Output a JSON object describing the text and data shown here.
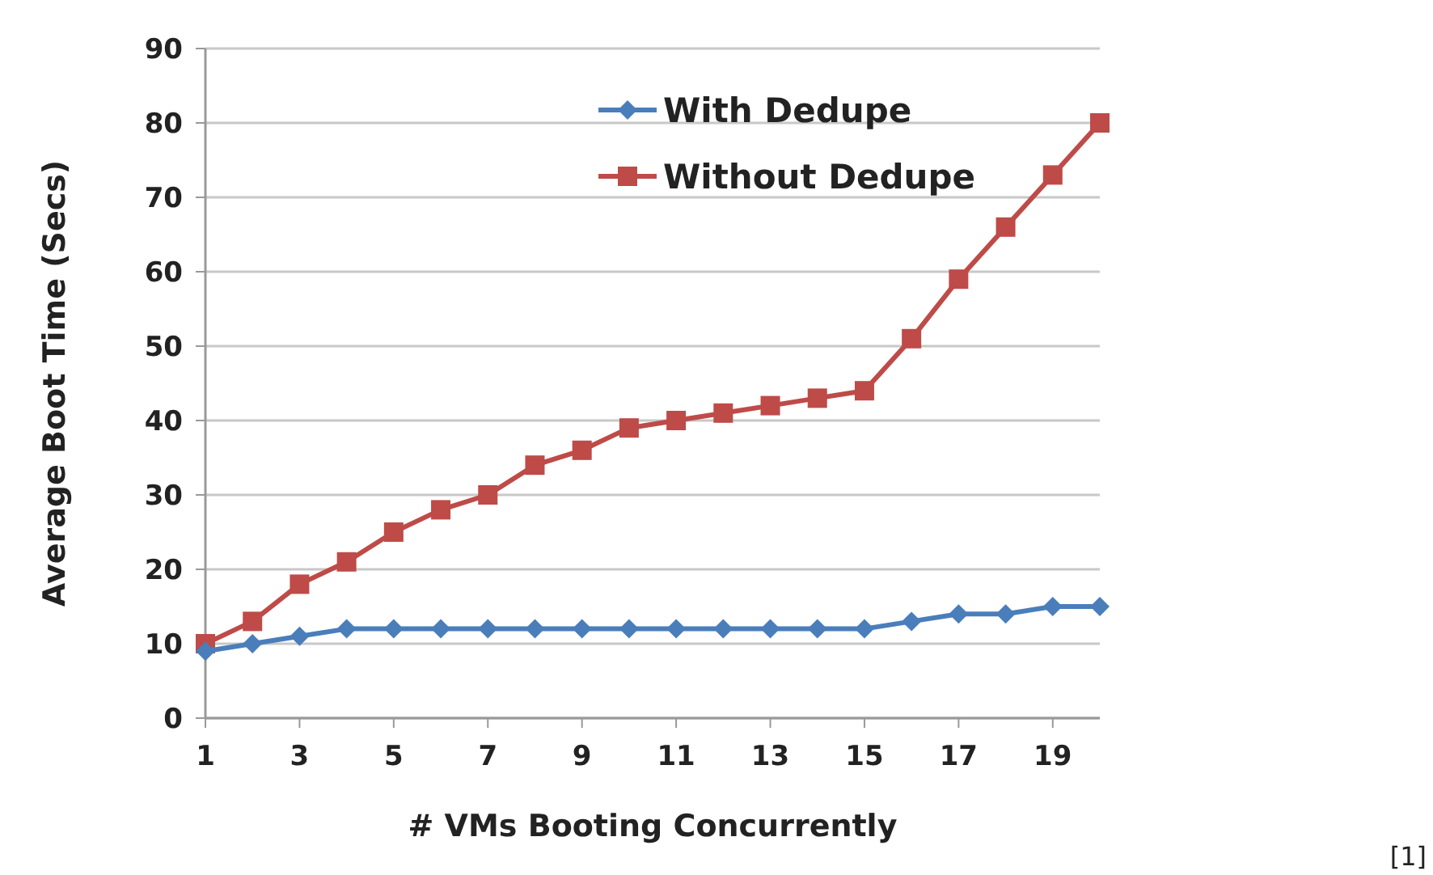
{
  "chart_data": {
    "type": "line",
    "xlabel": "# VMs Booting Concurrently",
    "ylabel": "Average Boot Time (Secs)",
    "x": [
      1,
      2,
      3,
      4,
      5,
      6,
      7,
      8,
      9,
      10,
      11,
      12,
      13,
      14,
      15,
      16,
      17,
      18,
      19,
      20
    ],
    "xlim": [
      1,
      20
    ],
    "xticks": [
      1,
      3,
      5,
      7,
      9,
      11,
      13,
      15,
      17,
      19
    ],
    "ylim": [
      0,
      90
    ],
    "yticks": [
      0,
      10,
      20,
      30,
      40,
      50,
      60,
      70,
      80,
      90
    ],
    "grid": "y",
    "legend": "top",
    "line_style": "solid",
    "series": [
      {
        "name": "With Dedupe",
        "color": "#4a7ebb",
        "marker": "diamond",
        "values": [
          9,
          10,
          11,
          12,
          12,
          12,
          12,
          12,
          12,
          12,
          12,
          12,
          12,
          12,
          12,
          13,
          14,
          14,
          15,
          15
        ]
      },
      {
        "name": "Without Dedupe",
        "color": "#be4b48",
        "marker": "square",
        "values": [
          10,
          13,
          18,
          21,
          25,
          28,
          30,
          34,
          36,
          39,
          40,
          41,
          42,
          43,
          44,
          51,
          59,
          66,
          73,
          80
        ]
      }
    ],
    "annotations": [
      "[1]"
    ]
  }
}
